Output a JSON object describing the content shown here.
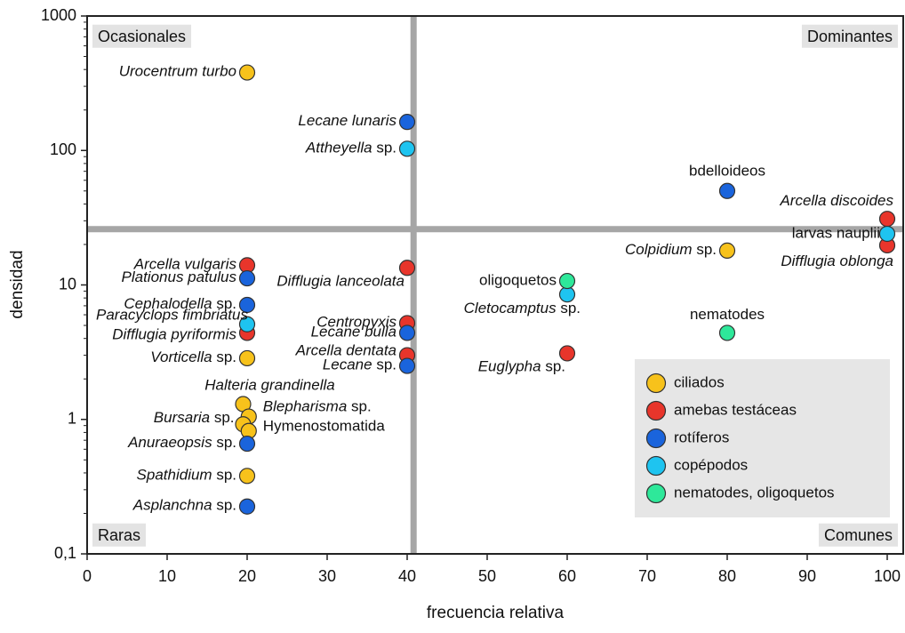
{
  "chart_data": {
    "type": "scatter",
    "x_label": "frecuencia relativa",
    "y_label": "densidad",
    "xlim": [
      0,
      102
    ],
    "ylim": [
      0.1,
      1000
    ],
    "log_y": true,
    "xticks": [
      0,
      10,
      20,
      30,
      40,
      50,
      60,
      70,
      80,
      90,
      100
    ],
    "yticks": [
      {
        "value": 0.1,
        "label": "0,1"
      },
      1,
      10,
      100,
      1000
    ],
    "x_threshold": 40.8,
    "y_threshold": 26,
    "quadrants": [
      "Ocasionales",
      "Dominantes",
      "Raras",
      "Comunes"
    ],
    "legend_position": "lower right",
    "series": [
      {
        "name": "ciliados",
        "color": "#f7c21b",
        "x": [
          20,
          80,
          20,
          19.5,
          20.2,
          19.5,
          20.2,
          20
        ],
        "values": [
          380,
          18,
          2.85,
          1.3,
          1.05,
          0.92,
          0.82,
          0.38
        ],
        "labels": [
          "Urocentrum turbo",
          "Colpidium sp.",
          "Vorticella sp.",
          "Halteria grandinella",
          "Blepharisma sp.",
          "Bursaria sp.",
          "Hymenostomatida",
          "Spathidium sp."
        ]
      },
      {
        "name": "amebas testáceas",
        "color": "#e8352b",
        "x": [
          100,
          100,
          20,
          20,
          40,
          40,
          40,
          60
        ],
        "values": [
          31,
          19.7,
          14,
          4.4,
          13.4,
          5.2,
          3.0,
          3.1
        ],
        "labels": [
          "Arcella discoides",
          "Difflugia oblonga",
          "Arcella vulgaris",
          "Difflugia pyriformis",
          "Difflugia lanceolata",
          "Centropyxis",
          "Arcella dentata",
          "Euglypha sp."
        ]
      },
      {
        "name": "rotíferos",
        "color": "#1a64dc",
        "x": [
          40,
          80,
          20,
          20,
          40,
          40,
          20,
          20
        ],
        "values": [
          163,
          50,
          11.2,
          7.1,
          4.4,
          2.5,
          0.66,
          0.225
        ],
        "labels": [
          "Lecane lunaris",
          "bdelloideos",
          "Plationus patulus",
          "Cephalodella sp.",
          "Lecane bulla",
          "Lecane sp.",
          "Anuraeopsis sp.",
          "Asplanchna sp."
        ]
      },
      {
        "name": "copépodos",
        "color": "#1ec4f0",
        "x": [
          40,
          100,
          60,
          20
        ],
        "values": [
          103,
          24,
          8.5,
          5.1
        ],
        "labels": [
          "Attheyella sp.",
          "larvas nauplii",
          "Cletocamptus sp.",
          "Paracyclops fimbriatus"
        ]
      },
      {
        "name": "nematodes, oligoquetos",
        "color": "#2ee89a",
        "x": [
          60,
          80
        ],
        "values": [
          10.7,
          4.4
        ],
        "labels": [
          "oligoquetos",
          "nematodes"
        ]
      }
    ]
  }
}
